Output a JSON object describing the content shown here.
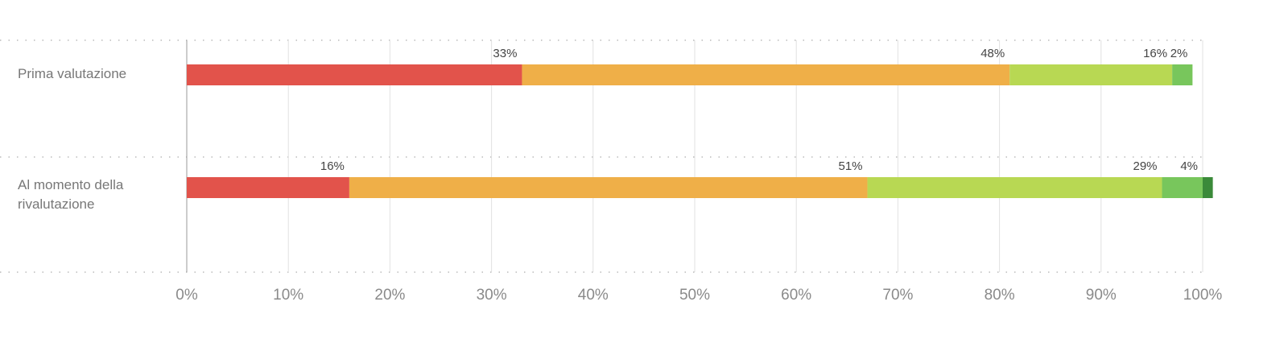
{
  "chart_data": {
    "type": "bar",
    "orientation": "horizontal",
    "stacked": true,
    "categories": [
      "Prima valutazione",
      "Al momento della rivalutazione"
    ],
    "series": [
      {
        "color": "#e2534b",
        "values": [
          33,
          16
        ],
        "value_labels": [
          "33%",
          "16%"
        ]
      },
      {
        "color": "#efaf48",
        "values": [
          48,
          51
        ],
        "value_labels": [
          "48%",
          "51%"
        ]
      },
      {
        "color": "#b8d853",
        "values": [
          16,
          29
        ],
        "value_labels": [
          "16%",
          "29%"
        ]
      },
      {
        "color": "#78c65c",
        "values": [
          2,
          4
        ],
        "value_labels": [
          "2%",
          "4%"
        ]
      },
      {
        "color": "#3b8a3a",
        "values": [
          0,
          1
        ],
        "value_labels": [
          null,
          null
        ]
      }
    ],
    "xlim": [
      0,
      100
    ],
    "xticks": [
      {
        "value": 0,
        "label": "0%"
      },
      {
        "value": 10,
        "label": "10%"
      },
      {
        "value": 20,
        "label": "20%"
      },
      {
        "value": 30,
        "label": "30%"
      },
      {
        "value": 40,
        "label": "40%"
      },
      {
        "value": 50,
        "label": "50%"
      },
      {
        "value": 60,
        "label": "60%"
      },
      {
        "value": 70,
        "label": "70%"
      },
      {
        "value": 80,
        "label": "80%"
      },
      {
        "value": 90,
        "label": "90%"
      },
      {
        "value": 100,
        "label": "100%"
      }
    ],
    "grid": true
  }
}
